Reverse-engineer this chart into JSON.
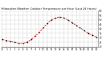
{
  "title": "Milwaukee Weather Outdoor Temperature per Hour (Last 24 Hours)",
  "hours": [
    0,
    1,
    2,
    3,
    4,
    5,
    6,
    7,
    8,
    9,
    10,
    11,
    12,
    13,
    14,
    15,
    16,
    17,
    18,
    19,
    20,
    21,
    22,
    23
  ],
  "temps": [
    28,
    27,
    26,
    25,
    24,
    24,
    25,
    28,
    32,
    36,
    41,
    46,
    50,
    52,
    53,
    52,
    50,
    47,
    44,
    41,
    38,
    35,
    33,
    31
  ],
  "line_color": "#cc0000",
  "marker_color": "#000000",
  "bg_color": "#ffffff",
  "grid_color": "#888888",
  "ylim_min": 20,
  "ylim_max": 60,
  "yticks": [
    20,
    25,
    30,
    35,
    40,
    45,
    50,
    55,
    60
  ],
  "title_fontsize": 3.0,
  "tick_fontsize": 2.5
}
